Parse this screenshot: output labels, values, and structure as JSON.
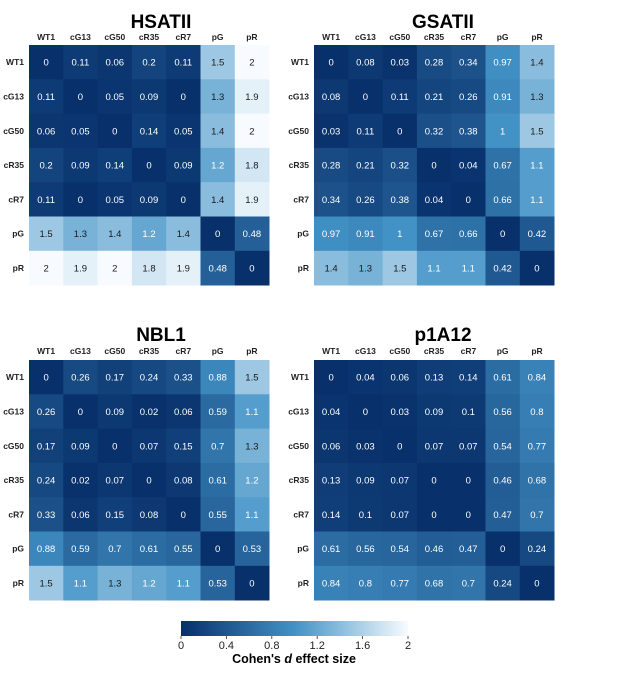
{
  "chart_data": [
    {
      "type": "heatmap",
      "title": "HSATII",
      "categories": [
        "WT1",
        "cG13",
        "cG50",
        "cR35",
        "cR7",
        "pG",
        "pR"
      ],
      "values": [
        [
          0,
          0.11,
          0.06,
          0.2,
          0.11,
          1.5,
          2
        ],
        [
          0.11,
          0,
          0.05,
          0.09,
          0,
          1.3,
          1.9
        ],
        [
          0.06,
          0.05,
          0,
          0.14,
          0.05,
          1.4,
          2
        ],
        [
          0.2,
          0.09,
          0.14,
          0,
          0.09,
          1.2,
          1.8
        ],
        [
          0.11,
          0,
          0.05,
          0.09,
          0,
          1.4,
          1.9
        ],
        [
          1.5,
          1.3,
          1.4,
          1.2,
          1.4,
          0,
          0.48
        ],
        [
          2,
          1.9,
          2,
          1.8,
          1.9,
          0.48,
          0
        ]
      ]
    },
    {
      "type": "heatmap",
      "title": "GSATII",
      "categories": [
        "WT1",
        "cG13",
        "cG50",
        "cR35",
        "cR7",
        "pG",
        "pR"
      ],
      "values": [
        [
          0,
          0.08,
          0.03,
          0.28,
          0.34,
          0.97,
          1.4
        ],
        [
          0.08,
          0,
          0.11,
          0.21,
          0.26,
          0.91,
          1.3
        ],
        [
          0.03,
          0.11,
          0,
          0.32,
          0.38,
          1,
          1.5
        ],
        [
          0.28,
          0.21,
          0.32,
          0,
          0.04,
          0.67,
          1.1
        ],
        [
          0.34,
          0.26,
          0.38,
          0.04,
          0,
          0.66,
          1.1
        ],
        [
          0.97,
          0.91,
          1,
          0.67,
          0.66,
          0,
          0.42
        ],
        [
          1.4,
          1.3,
          1.5,
          1.1,
          1.1,
          0.42,
          0
        ]
      ]
    },
    {
      "type": "heatmap",
      "title": "NBL1",
      "categories": [
        "WT1",
        "cG13",
        "cG50",
        "cR35",
        "cR7",
        "pG",
        "pR"
      ],
      "values": [
        [
          0,
          0.26,
          0.17,
          0.24,
          0.33,
          0.88,
          1.5
        ],
        [
          0.26,
          0,
          0.09,
          0.02,
          0.06,
          0.59,
          1.1
        ],
        [
          0.17,
          0.09,
          0,
          0.07,
          0.15,
          0.7,
          1.3
        ],
        [
          0.24,
          0.02,
          0.07,
          0,
          0.08,
          0.61,
          1.2
        ],
        [
          0.33,
          0.06,
          0.15,
          0.08,
          0,
          0.55,
          1.1
        ],
        [
          0.88,
          0.59,
          0.7,
          0.61,
          0.55,
          0,
          0.53
        ],
        [
          1.5,
          1.1,
          1.3,
          1.2,
          1.1,
          0.53,
          0
        ]
      ]
    },
    {
      "type": "heatmap",
      "title": "p1A12",
      "categories": [
        "WT1",
        "cG13",
        "cG50",
        "cR35",
        "cR7",
        "pG",
        "pR"
      ],
      "values": [
        [
          0,
          0.04,
          0.06,
          0.13,
          0.14,
          0.61,
          0.84
        ],
        [
          0.04,
          0,
          0.03,
          0.09,
          0.1,
          0.56,
          0.8
        ],
        [
          0.06,
          0.03,
          0,
          0.07,
          0.07,
          0.54,
          0.77
        ],
        [
          0.13,
          0.09,
          0.07,
          0,
          0,
          0.46,
          0.68
        ],
        [
          0.14,
          0.1,
          0.07,
          0,
          0,
          0.47,
          0.7
        ],
        [
          0.61,
          0.56,
          0.54,
          0.46,
          0.47,
          0,
          0.24
        ],
        [
          0.84,
          0.8,
          0.77,
          0.68,
          0.7,
          0.24,
          0
        ]
      ]
    }
  ],
  "colorbar": {
    "ticks": [
      "0",
      "0.4",
      "0.8",
      "1.2",
      "1.6",
      "2"
    ],
    "range": [
      0,
      2
    ],
    "title_prefix": "Cohen's ",
    "title_italic": "d",
    "title_suffix": " effect size",
    "color_low": "#08306b",
    "color_mid": "#4292c6",
    "color_high": "#f7fbff"
  }
}
